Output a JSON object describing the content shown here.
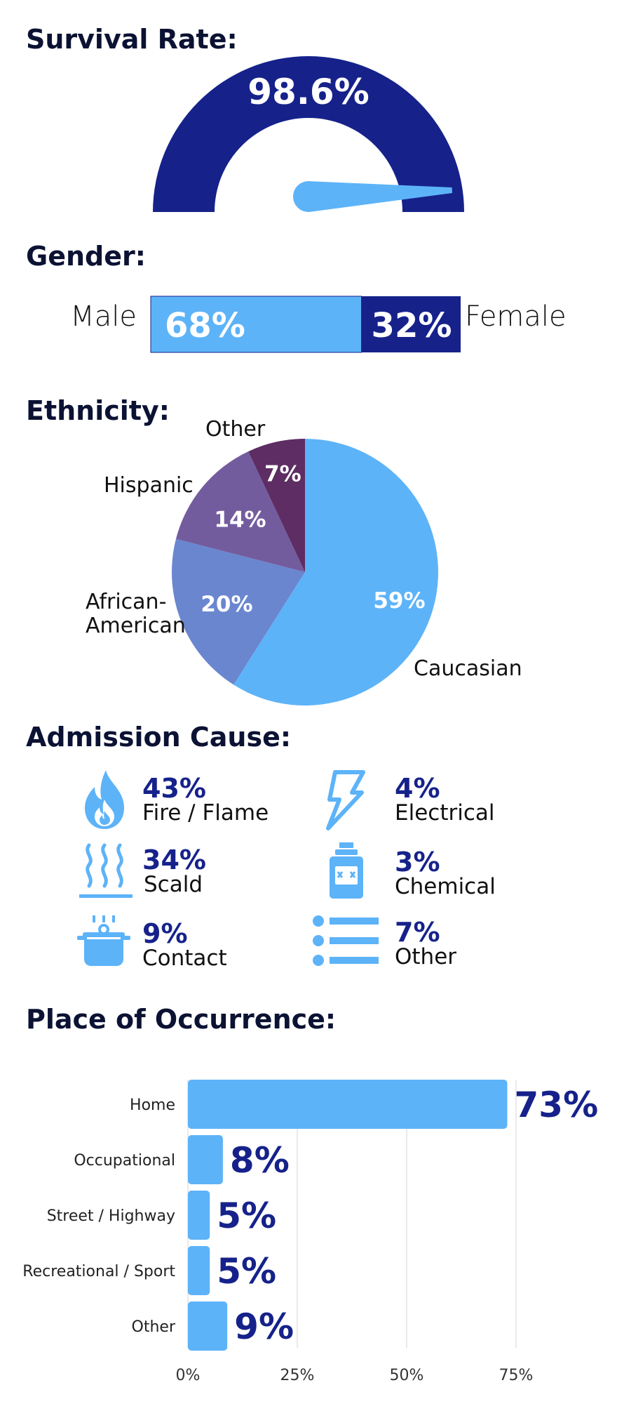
{
  "colors": {
    "dark_blue": "#16228a",
    "light_blue": "#5db3f8",
    "title": "#0b1233",
    "pie_african_american": "#6a86cf",
    "pie_hispanic": "#735c9e",
    "pie_other": "#5d2d63",
    "grid": "#e3e3e3"
  },
  "chart_data": [
    {
      "type": "gauge",
      "title": "Survival Rate:",
      "value": 98.6,
      "range": [
        0,
        100
      ],
      "value_label": "98.6%"
    },
    {
      "type": "bar",
      "title": "Gender:",
      "orientation": "stacked-horizontal",
      "categories": [
        "Male",
        "Female"
      ],
      "values": [
        68,
        32
      ],
      "value_labels": [
        "68%",
        "32%"
      ]
    },
    {
      "type": "pie",
      "title": "Ethnicity:",
      "categories": [
        "Caucasian",
        "African-American",
        "Hispanic",
        "Other"
      ],
      "values": [
        59,
        20,
        14,
        7
      ],
      "value_labels": [
        "59%",
        "20%",
        "14%",
        "7%"
      ]
    },
    {
      "type": "table",
      "title": "Admission Cause:",
      "items": [
        {
          "label": "Fire / Flame",
          "value": 43,
          "value_label": "43%",
          "icon": "flame-icon"
        },
        {
          "label": "Electrical",
          "value": 4,
          "value_label": "4%",
          "icon": "lightning-icon"
        },
        {
          "label": "Scald",
          "value": 34,
          "value_label": "34%",
          "icon": "steam-icon"
        },
        {
          "label": "Chemical",
          "value": 3,
          "value_label": "3%",
          "icon": "chemical-bottle-icon"
        },
        {
          "label": "Contact",
          "value": 9,
          "value_label": "9%",
          "icon": "hot-pot-icon"
        },
        {
          "label": "Other",
          "value": 7,
          "value_label": "7%",
          "icon": "list-icon"
        }
      ]
    },
    {
      "type": "bar",
      "title": "Place of Occurrence:",
      "orientation": "horizontal",
      "categories": [
        "Home",
        "Occupational",
        "Street / Highway",
        "Recreational / Sport",
        "Other"
      ],
      "values": [
        73,
        8,
        5,
        5,
        9
      ],
      "value_labels": [
        "73%",
        "8%",
        "5%",
        "5%",
        "9%"
      ],
      "xlim": [
        0,
        80
      ],
      "xticks": [
        0,
        25,
        50,
        75
      ],
      "xtick_labels": [
        "0%",
        "25%",
        "50%",
        "75%"
      ],
      "grid": true
    }
  ]
}
